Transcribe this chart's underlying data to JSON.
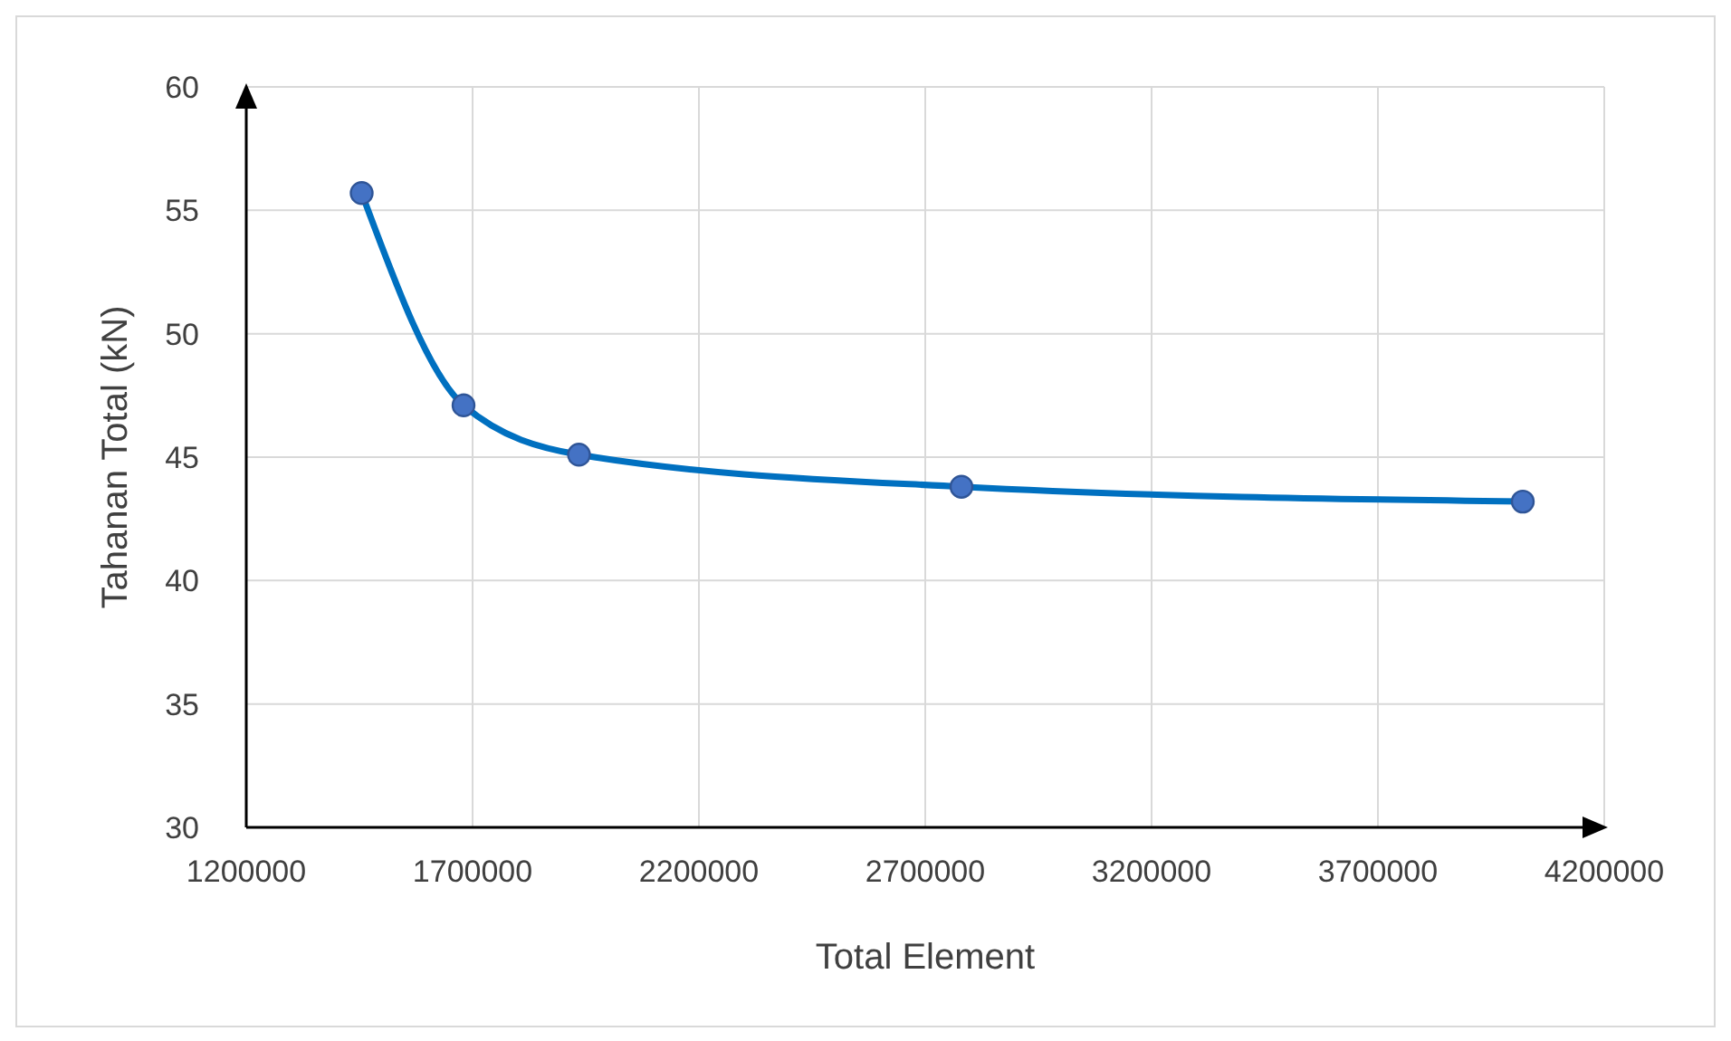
{
  "chart_data": {
    "type": "line",
    "xlabel": "Total Element",
    "ylabel": "Tahanan Total (kN)",
    "x": [
      1455000,
      1680000,
      1935000,
      2780000,
      4020000
    ],
    "series": [
      {
        "color": "#0070c0",
        "values": [
          55.7,
          47.1,
          45.1,
          43.8,
          43.2
        ]
      }
    ],
    "xlim": [
      1200000,
      4200000
    ],
    "xticks": [
      1200000,
      1700000,
      2200000,
      2700000,
      3200000,
      3700000,
      4200000
    ],
    "ylim": [
      30,
      60
    ],
    "yticks": [
      30,
      35,
      40,
      45,
      50,
      55,
      60
    ],
    "grid": true,
    "marker": "circle",
    "line_style": "solid"
  }
}
